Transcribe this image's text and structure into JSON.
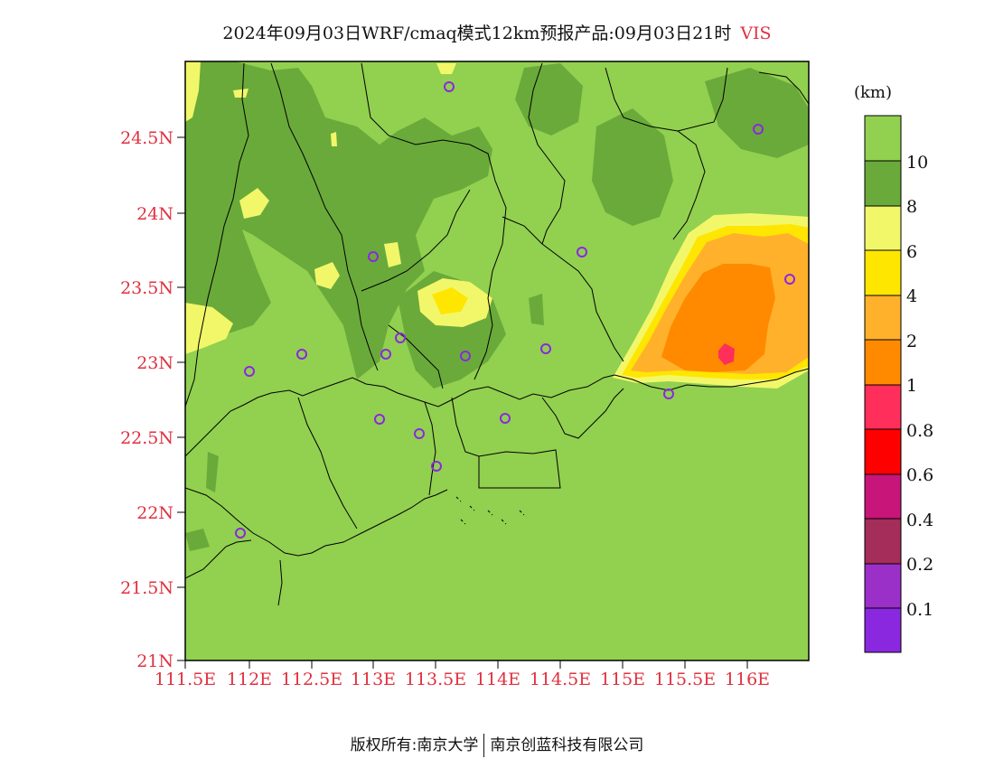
{
  "title": {
    "main": "2024年09月03日WRF/cmaq模式12km预报产品:09月03日21时",
    "variable": "VIS"
  },
  "axes": {
    "y_ticks": [
      "24.5N",
      "24N",
      "23.5N",
      "23N",
      "22.5N",
      "22N",
      "21.5N",
      "21N"
    ],
    "x_ticks": [
      "111.5E",
      "112E",
      "112.5E",
      "113E",
      "113.5E",
      "114E",
      "114.5E",
      "115E",
      "115.5E",
      "116E"
    ]
  },
  "colorbar": {
    "unit": "(km)",
    "labels": [
      "10",
      "8",
      "6",
      "4",
      "2",
      "1",
      "0.8",
      "0.6",
      "0.4",
      "0.2",
      "0.1"
    ],
    "colors": [
      "#92d050",
      "#6aaa3a",
      "#f2f76a",
      "#ffe600",
      "#ffb12b",
      "#ff8a00",
      "#ff2e5a",
      "#ff0000",
      "#c8157a",
      "#a52d5a",
      "#9b30c8",
      "#8a28e0"
    ]
  },
  "copyright": {
    "left": "版权所有:南京大学",
    "right": "南京创蓝科技有限公司"
  }
}
